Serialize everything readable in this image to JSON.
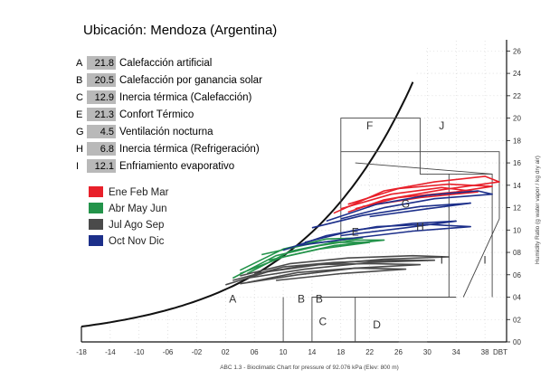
{
  "chart_data": {
    "type": "line",
    "title": "Ubicación: Mendoza (Argentina)",
    "xlabel": "ABC 1.3 - Bioclimatic Chart for pressure of 92.076 kPa (Elev: 800 m)",
    "ylabel": "Humidity Ratio (g water vapor / kg dry air)",
    "xlim": [
      -18,
      41
    ],
    "ylim": [
      0,
      27
    ],
    "x_unit_label": "DBT",
    "x_ticks": [
      "-18",
      "-14",
      "-10",
      "-06",
      "-02",
      "02",
      "06",
      "10",
      "14",
      "18",
      "22",
      "26",
      "30",
      "34",
      "38"
    ],
    "y_ticks": [
      "00",
      "02",
      "04",
      "06",
      "08",
      "10",
      "12",
      "14",
      "16",
      "18",
      "20",
      "22",
      "24",
      "26"
    ],
    "strategies": [
      {
        "letter": "A",
        "value": "21.8",
        "name": "Calefacción artificial"
      },
      {
        "letter": "B",
        "value": "20.5",
        "name": "Calefacción por ganancia solar"
      },
      {
        "letter": "C",
        "value": "12.9",
        "name": "Inercia térmica (Calefacción)"
      },
      {
        "letter": "E",
        "value": "21.3",
        "name": "Confort Térmico"
      },
      {
        "letter": "G",
        "value": "4.5",
        "name": "Ventilación nocturna"
      },
      {
        "letter": "H",
        "value": "6.8",
        "name": "Inercia térmica (Refrigeración)"
      },
      {
        "letter": "I",
        "value": "12.1",
        "name": "Enfriamiento evaporativo"
      }
    ],
    "zone_labels": [
      "A",
      "B",
      "B",
      "C",
      "D",
      "E",
      "F",
      "G",
      "H",
      "I",
      "I",
      "J"
    ],
    "series": [
      {
        "name": "Ene Feb Mar",
        "color": "#e8202a",
        "lines": [
          [
            [
              17,
              11.5
            ],
            [
              24,
              13.5
            ],
            [
              31,
              14.3
            ],
            [
              38,
              14.8
            ],
            [
              40,
              14.3
            ],
            [
              32,
              13.6
            ],
            [
              24,
              12.7
            ],
            [
              19,
              11.6
            ]
          ],
          [
            [
              19,
              12.3
            ],
            [
              26,
              13.7
            ],
            [
              33,
              14.1
            ],
            [
              39,
              13.9
            ],
            [
              34,
              13.4
            ],
            [
              26,
              12.9
            ],
            [
              20,
              11.9
            ]
          ],
          [
            [
              18,
              11.9
            ],
            [
              25,
              13.2
            ],
            [
              32,
              13.8
            ],
            [
              37,
              13.4
            ],
            [
              29,
              12.9
            ],
            [
              21,
              12.1
            ]
          ]
        ]
      },
      {
        "name": "Abr May Jun",
        "color": "#23934a",
        "lines": [
          [
            [
              3,
              5.7
            ],
            [
              9,
              7.7
            ],
            [
              15,
              8.6
            ],
            [
              20,
              9.1
            ],
            [
              24,
              9.1
            ],
            [
              17,
              8.6
            ],
            [
              10,
              7.6
            ],
            [
              4,
              6.1
            ]
          ],
          [
            [
              5,
              6.1
            ],
            [
              11,
              8.1
            ],
            [
              17,
              8.9
            ],
            [
              22,
              8.9
            ],
            [
              15,
              8.3
            ],
            [
              8,
              7.3
            ]
          ],
          [
            [
              4,
              6.4
            ],
            [
              10,
              8.3
            ],
            [
              16,
              9.2
            ],
            [
              21,
              9.3
            ],
            [
              14,
              8.8
            ],
            [
              7,
              7.8
            ]
          ]
        ]
      },
      {
        "name": "Jul Ago Sep",
        "color": "#4a4a4a",
        "lines": [
          [
            [
              2,
              5.1
            ],
            [
              8,
              6.3
            ],
            [
              14,
              6.9
            ],
            [
              22,
              7.0
            ],
            [
              29,
              6.9
            ],
            [
              20,
              6.6
            ],
            [
              12,
              6.0
            ],
            [
              4,
              5.2
            ]
          ],
          [
            [
              3,
              5.5
            ],
            [
              10,
              6.7
            ],
            [
              17,
              7.1
            ],
            [
              25,
              7.3
            ],
            [
              31,
              7.3
            ],
            [
              22,
              7.1
            ],
            [
              13,
              6.5
            ],
            [
              5,
              5.7
            ]
          ],
          [
            [
              4,
              5.9
            ],
            [
              11,
              7.0
            ],
            [
              19,
              7.5
            ],
            [
              28,
              7.7
            ],
            [
              33,
              7.6
            ],
            [
              24,
              7.4
            ],
            [
              15,
              6.9
            ],
            [
              6,
              6.1
            ]
          ],
          [
            [
              5,
              5.3
            ],
            [
              12,
              6.2
            ],
            [
              20,
              6.6
            ],
            [
              27,
              6.5
            ],
            [
              18,
              6.1
            ],
            [
              9,
              5.5
            ]
          ]
        ]
      },
      {
        "name": "Oct Nov Dic",
        "color": "#1c2f8a",
        "lines": [
          [
            [
              10,
              8.2
            ],
            [
              16,
              9.5
            ],
            [
              23,
              10.3
            ],
            [
              30,
              10.5
            ],
            [
              36,
              10.3
            ],
            [
              28,
              9.9
            ],
            [
              20,
              9.3
            ],
            [
              12,
              8.6
            ]
          ],
          [
            [
              13,
              8.9
            ],
            [
              20,
              10.0
            ],
            [
              28,
              10.6
            ],
            [
              34,
              10.8
            ],
            [
              27,
              10.2
            ],
            [
              18,
              9.5
            ]
          ],
          [
            [
              16,
              10.8
            ],
            [
              23,
              12.3
            ],
            [
              30,
              13.1
            ],
            [
              37,
              13.5
            ],
            [
              39,
              13.2
            ],
            [
              31,
              12.8
            ],
            [
              24,
              12.0
            ],
            [
              18,
              11.0
            ]
          ],
          [
            [
              14,
              10.2
            ],
            [
              21,
              11.3
            ],
            [
              29,
              12.1
            ],
            [
              36,
              12.4
            ],
            [
              30,
              11.9
            ],
            [
              22,
              11.2
            ]
          ]
        ]
      }
    ]
  }
}
